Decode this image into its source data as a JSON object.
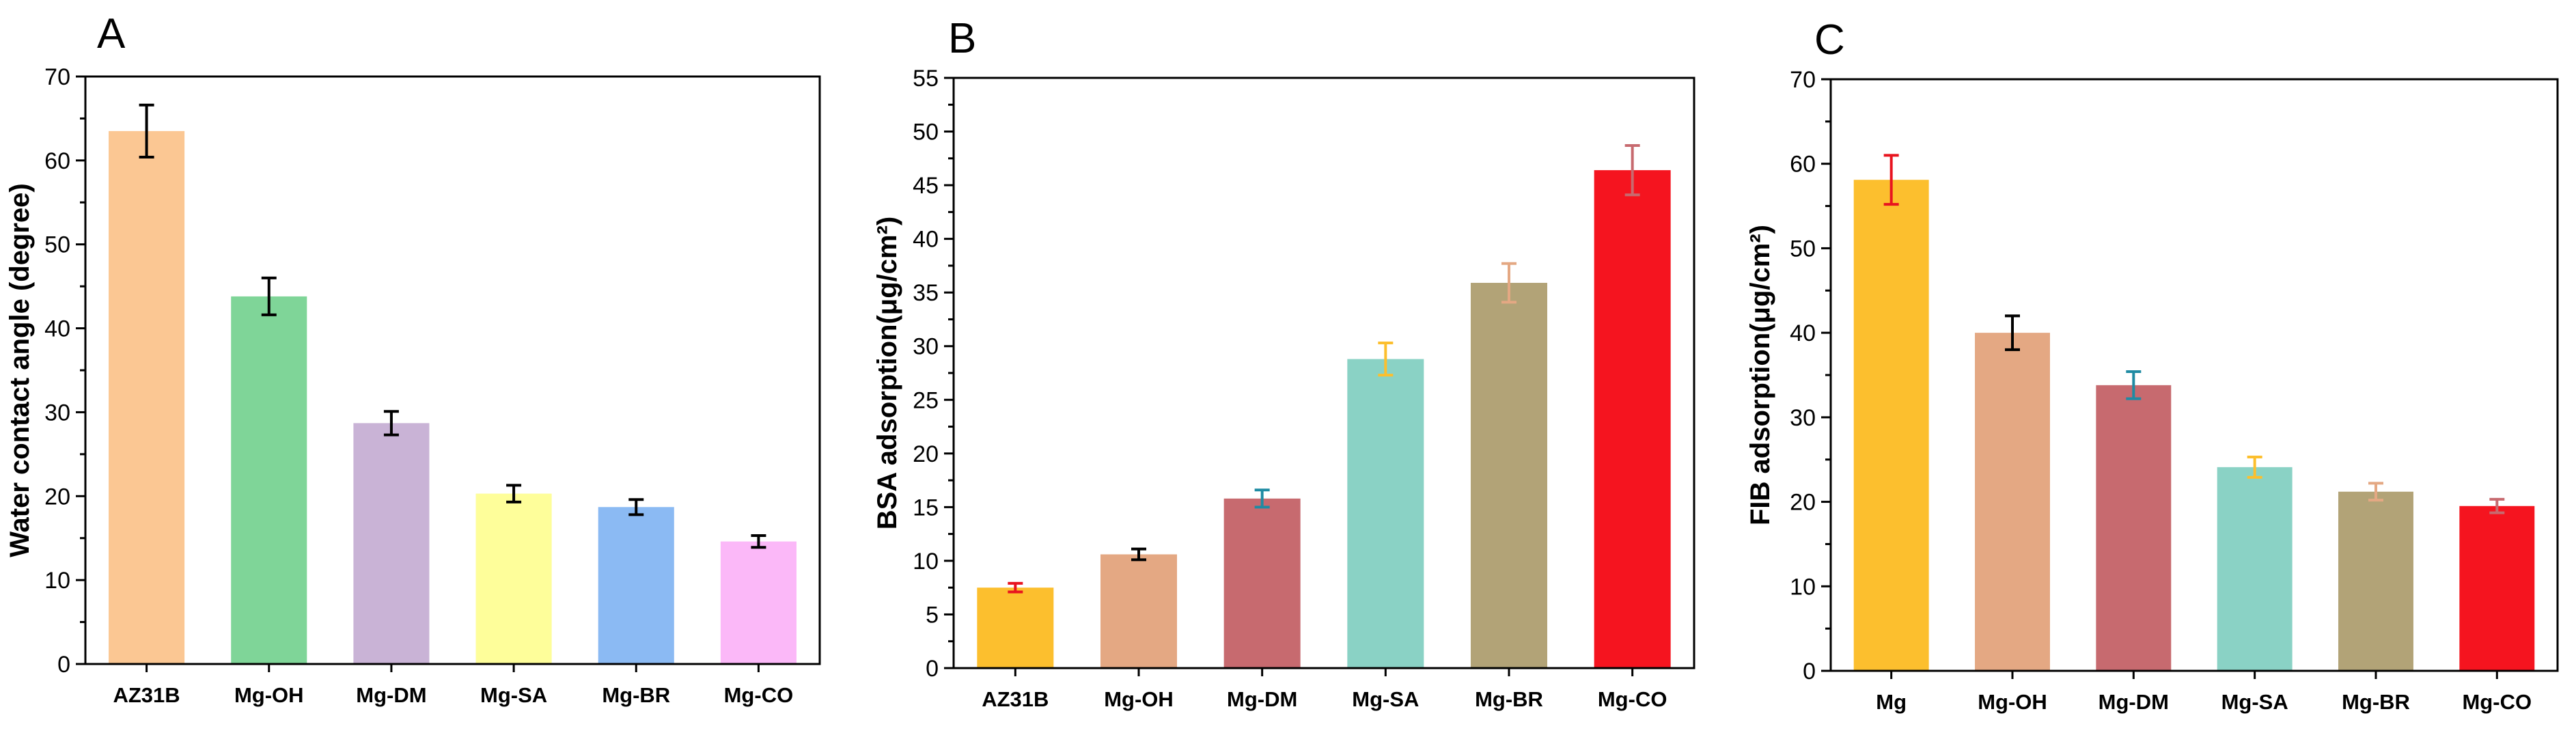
{
  "chart_data": [
    {
      "type": "bar",
      "panel_label": "A",
      "ylabel": "Water contact angle (degree)",
      "ylim": [
        0,
        70
      ],
      "yticks": [
        0,
        10,
        20,
        30,
        40,
        50,
        60,
        70
      ],
      "categories": [
        "AZ31B",
        "Mg-OH",
        "Mg-DM",
        "Mg-SA",
        "Mg-BR",
        "Mg-CO"
      ],
      "values": [
        63.5,
        43.8,
        28.7,
        20.3,
        18.7,
        14.6
      ],
      "errors": [
        3.1,
        2.2,
        1.4,
        1.0,
        0.9,
        0.7
      ],
      "colors": [
        "#FBC793",
        "#7FD598",
        "#C9B3D6",
        "#FEFE9A",
        "#8BBAF3",
        "#FBB8F8"
      ],
      "error_colors": [
        "#000000",
        "#000000",
        "#000000",
        "#000000",
        "#000000",
        "#000000"
      ]
    },
    {
      "type": "bar",
      "panel_label": "B",
      "ylabel": "BSA adsorption(μg/cm²)",
      "ylim": [
        0,
        55
      ],
      "yticks": [
        0,
        5,
        10,
        15,
        20,
        25,
        30,
        35,
        40,
        45,
        50,
        55
      ],
      "categories": [
        "AZ31B",
        "Mg-OH",
        "Mg-DM",
        "Mg-SA",
        "Mg-BR",
        "Mg-CO"
      ],
      "values": [
        7.5,
        10.6,
        15.8,
        28.8,
        35.9,
        46.4
      ],
      "errors": [
        0.4,
        0.5,
        0.8,
        1.5,
        1.8,
        2.3
      ],
      "colors": [
        "#FCBF2E",
        "#E4A883",
        "#C76A6F",
        "#8AD2C5",
        "#B2A377",
        "#F5141F"
      ],
      "error_colors": [
        "#E8141F",
        "#000000",
        "#1F8BA3",
        "#FCBF2E",
        "#E4A883",
        "#C76A6F"
      ]
    },
    {
      "type": "bar",
      "panel_label": "C",
      "ylabel": "FIB adsorption(μg/cm²)",
      "ylim": [
        0,
        70
      ],
      "yticks": [
        0,
        10,
        20,
        30,
        40,
        50,
        60,
        70
      ],
      "categories": [
        "Mg",
        "Mg-OH",
        "Mg-DM",
        "Mg-SA",
        "Mg-BR",
        "Mg-CO"
      ],
      "values": [
        58.1,
        40.0,
        33.8,
        24.1,
        21.2,
        19.5
      ],
      "errors": [
        2.9,
        2.0,
        1.6,
        1.2,
        1.0,
        0.8
      ],
      "colors": [
        "#FCBF2E",
        "#E4A883",
        "#C76A6F",
        "#8AD2C5",
        "#B2A377",
        "#F5141F"
      ],
      "error_colors": [
        "#E8141F",
        "#000000",
        "#1F8BA3",
        "#FCBF2E",
        "#E4A883",
        "#C76A6F"
      ]
    }
  ]
}
